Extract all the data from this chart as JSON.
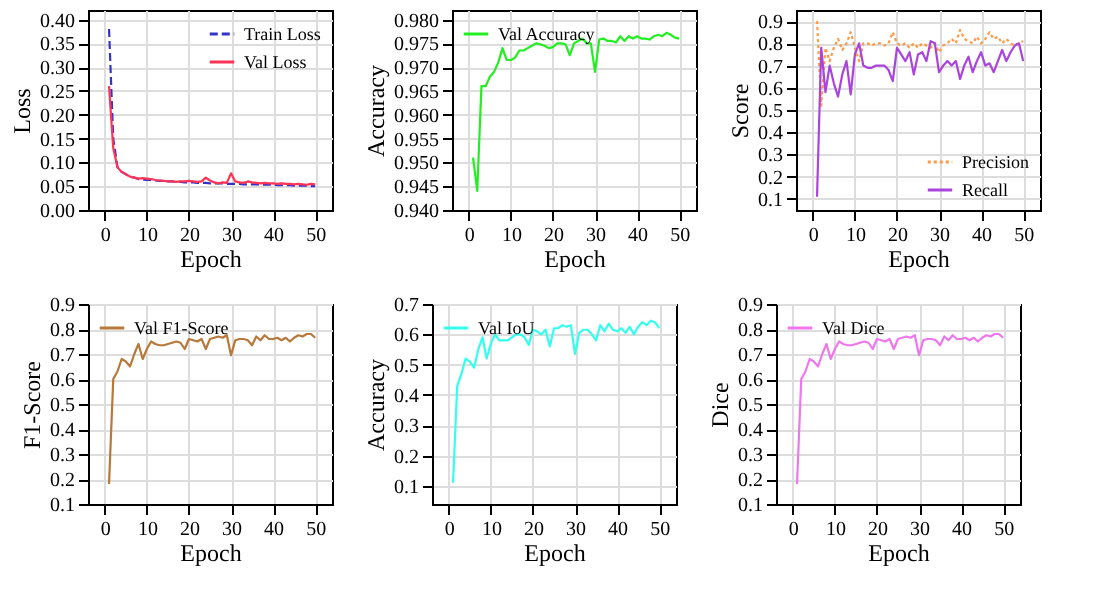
{
  "chart_data": [
    {
      "type": "line",
      "xlabel": "Epoch",
      "ylabel": "Loss",
      "xlim": [
        -4,
        54
      ],
      "xticks": [
        0,
        10,
        20,
        30,
        40,
        50
      ],
      "ylim": [
        0,
        0.42
      ],
      "yticks": [
        {
          "value": 0,
          "label": "0.00"
        },
        {
          "value": 0.05,
          "label": "0.05"
        },
        {
          "value": 0.1,
          "label": "0.10"
        },
        {
          "value": 0.15,
          "label": "0.15"
        },
        {
          "value": 0.2,
          "label": "0.20"
        },
        {
          "value": 0.25,
          "label": "0.25"
        },
        {
          "value": 0.3,
          "label": "0.30"
        },
        {
          "value": 0.35,
          "label": "0.35"
        },
        {
          "value": 0.4,
          "label": "0.40"
        }
      ],
      "grid": true,
      "legend": "top right",
      "x": [
        1,
        2,
        3,
        4,
        5,
        6,
        7,
        8,
        9,
        10,
        11,
        12,
        13,
        14,
        15,
        16,
        17,
        18,
        19,
        20,
        21,
        22,
        23,
        24,
        25,
        26,
        27,
        28,
        29,
        30,
        31,
        32,
        33,
        34,
        35,
        36,
        37,
        38,
        39,
        40,
        41,
        42,
        43,
        44,
        45,
        46,
        47,
        48,
        49,
        50
      ],
      "series": [
        {
          "name": "Train Loss",
          "color": "#3333cc",
          "line_style": "dashed",
          "values": [
            0.38,
            0.15,
            0.09,
            0.08,
            0.075,
            0.07,
            0.068,
            0.065,
            0.064,
            0.063,
            0.063,
            0.062,
            0.061,
            0.061,
            0.06,
            0.06,
            0.059,
            0.059,
            0.058,
            0.058,
            0.058,
            0.057,
            0.057,
            0.057,
            0.056,
            0.056,
            0.056,
            0.056,
            0.055,
            0.055,
            0.055,
            0.055,
            0.054,
            0.054,
            0.054,
            0.054,
            0.053,
            0.053,
            0.053,
            0.053,
            0.052,
            0.052,
            0.052,
            0.052,
            0.051,
            0.051,
            0.051,
            0.051,
            0.05,
            0.05
          ]
        },
        {
          "name": "Val Loss",
          "color": "#ff3355",
          "line_style": "solid",
          "values": [
            0.26,
            0.13,
            0.09,
            0.08,
            0.075,
            0.07,
            0.068,
            0.066,
            0.067,
            0.066,
            0.065,
            0.063,
            0.062,
            0.061,
            0.06,
            0.06,
            0.059,
            0.06,
            0.06,
            0.061,
            0.06,
            0.059,
            0.06,
            0.068,
            0.062,
            0.058,
            0.056,
            0.058,
            0.057,
            0.077,
            0.06,
            0.058,
            0.057,
            0.06,
            0.058,
            0.057,
            0.056,
            0.057,
            0.056,
            0.056,
            0.055,
            0.056,
            0.055,
            0.055,
            0.054,
            0.055,
            0.054,
            0.053,
            0.055,
            0.054
          ]
        }
      ]
    },
    {
      "type": "line",
      "xlabel": "Epoch",
      "ylabel": "Accuracy",
      "xlim": [
        -4,
        54
      ],
      "xticks": [
        0,
        10,
        20,
        30,
        40,
        50
      ],
      "ylim": [
        0.94,
        0.982
      ],
      "yticks": [
        {
          "value": 0.94,
          "label": "0.940"
        },
        {
          "value": 0.945,
          "label": "0.945"
        },
        {
          "value": 0.95,
          "label": "0.950"
        },
        {
          "value": 0.955,
          "label": "0.955"
        },
        {
          "value": 0.96,
          "label": "0.960"
        },
        {
          "value": 0.965,
          "label": "0.965"
        },
        {
          "value": 0.97,
          "label": "0.970"
        },
        {
          "value": 0.975,
          "label": "0.975"
        },
        {
          "value": 0.98,
          "label": "0.980"
        }
      ],
      "grid": true,
      "legend": "top left",
      "x": [
        1,
        2,
        3,
        4,
        5,
        6,
        7,
        8,
        9,
        10,
        11,
        12,
        13,
        14,
        15,
        16,
        17,
        18,
        19,
        20,
        21,
        22,
        23,
        24,
        25,
        26,
        27,
        28,
        29,
        30,
        31,
        32,
        33,
        34,
        35,
        36,
        37,
        38,
        39,
        40,
        41,
        42,
        43,
        44,
        45,
        46,
        47,
        48,
        49,
        50
      ],
      "series": [
        {
          "name": "Val Accuracy",
          "color": "#22ee22",
          "line_style": "solid",
          "values": [
            0.951,
            0.944,
            0.966,
            0.966,
            0.968,
            0.969,
            0.971,
            0.974,
            0.9715,
            0.9715,
            0.972,
            0.9735,
            0.9735,
            0.974,
            0.9745,
            0.975,
            0.9748,
            0.9745,
            0.974,
            0.9742,
            0.975,
            0.975,
            0.9748,
            0.9725,
            0.975,
            0.9755,
            0.976,
            0.975,
            0.975,
            0.969,
            0.9758,
            0.976,
            0.9755,
            0.9755,
            0.9752,
            0.9765,
            0.9755,
            0.9765,
            0.976,
            0.9765,
            0.976,
            0.976,
            0.9758,
            0.9765,
            0.9768,
            0.9765,
            0.9772,
            0.9768,
            0.9762,
            0.976
          ]
        }
      ]
    },
    {
      "type": "line",
      "xlabel": "Epoch",
      "ylabel": "Score",
      "xlim": [
        -4,
        54
      ],
      "xticks": [
        0,
        10,
        20,
        30,
        40,
        50
      ],
      "ylim": [
        0.05,
        0.95
      ],
      "yticks": [
        0.1,
        0.2,
        0.3,
        0.4,
        0.5,
        0.6,
        0.7,
        0.8,
        0.9
      ],
      "grid": true,
      "legend": "bottom right",
      "x": [
        1,
        2,
        3,
        4,
        5,
        6,
        7,
        8,
        9,
        10,
        11,
        12,
        13,
        14,
        15,
        16,
        17,
        18,
        19,
        20,
        21,
        22,
        23,
        24,
        25,
        26,
        27,
        28,
        29,
        30,
        31,
        32,
        33,
        34,
        35,
        36,
        37,
        38,
        39,
        40,
        41,
        42,
        43,
        44,
        45,
        46,
        47,
        48,
        49,
        50
      ],
      "series": [
        {
          "name": "Precision",
          "color": "#ff9944",
          "line_style": "dotted",
          "values": [
            0.9,
            0.52,
            0.78,
            0.72,
            0.78,
            0.82,
            0.77,
            0.8,
            0.85,
            0.78,
            0.72,
            0.8,
            0.8,
            0.79,
            0.8,
            0.8,
            0.79,
            0.8,
            0.85,
            0.8,
            0.79,
            0.8,
            0.78,
            0.8,
            0.78,
            0.8,
            0.79,
            0.78,
            0.8,
            0.76,
            0.79,
            0.8,
            0.82,
            0.8,
            0.86,
            0.82,
            0.81,
            0.8,
            0.83,
            0.8,
            0.82,
            0.85,
            0.82,
            0.83,
            0.8,
            0.82,
            0.8,
            0.79,
            0.8,
            0.81
          ]
        },
        {
          "name": "Recall",
          "color": "#aa44dd",
          "line_style": "solid",
          "values": [
            0.11,
            0.78,
            0.58,
            0.7,
            0.62,
            0.56,
            0.66,
            0.72,
            0.57,
            0.75,
            0.8,
            0.7,
            0.69,
            0.69,
            0.7,
            0.7,
            0.7,
            0.68,
            0.63,
            0.78,
            0.75,
            0.72,
            0.76,
            0.66,
            0.75,
            0.76,
            0.72,
            0.81,
            0.8,
            0.67,
            0.7,
            0.72,
            0.7,
            0.72,
            0.64,
            0.7,
            0.74,
            0.67,
            0.72,
            0.76,
            0.7,
            0.71,
            0.67,
            0.72,
            0.77,
            0.72,
            0.76,
            0.79,
            0.8,
            0.72
          ]
        }
      ]
    },
    {
      "type": "line",
      "xlabel": "Epoch",
      "ylabel": "F1-Score",
      "xlim": [
        -4,
        54
      ],
      "xticks": [
        0,
        10,
        20,
        30,
        40,
        50
      ],
      "ylim": [
        0.1,
        0.9
      ],
      "yticks": [
        0.1,
        0.2,
        0.3,
        0.4,
        0.5,
        0.6,
        0.7,
        0.8,
        0.9
      ],
      "grid": true,
      "legend": "top left",
      "x": [
        1,
        2,
        3,
        4,
        5,
        6,
        7,
        8,
        9,
        10,
        11,
        12,
        13,
        14,
        15,
        16,
        17,
        18,
        19,
        20,
        21,
        22,
        23,
        24,
        25,
        26,
        27,
        28,
        29,
        30,
        31,
        32,
        33,
        34,
        35,
        36,
        37,
        38,
        39,
        40,
        41,
        42,
        43,
        44,
        45,
        46,
        47,
        48,
        49,
        50
      ],
      "series": [
        {
          "name": "Val F1-Score",
          "color": "#b8783a",
          "line_style": "solid",
          "values": [
            0.18,
            0.6,
            0.63,
            0.68,
            0.67,
            0.65,
            0.7,
            0.74,
            0.68,
            0.72,
            0.75,
            0.74,
            0.735,
            0.735,
            0.74,
            0.745,
            0.75,
            0.745,
            0.72,
            0.76,
            0.755,
            0.75,
            0.76,
            0.72,
            0.76,
            0.765,
            0.77,
            0.765,
            0.775,
            0.695,
            0.755,
            0.76,
            0.76,
            0.755,
            0.735,
            0.77,
            0.755,
            0.775,
            0.76,
            0.76,
            0.765,
            0.755,
            0.765,
            0.75,
            0.765,
            0.775,
            0.77,
            0.78,
            0.78,
            0.765
          ]
        }
      ]
    },
    {
      "type": "line",
      "xlabel": "Epoch",
      "ylabel": "Accuracy",
      "xlim": [
        -4,
        54
      ],
      "xticks": [
        0,
        10,
        20,
        30,
        40,
        50
      ],
      "ylim": [
        0.04,
        0.7
      ],
      "yticks": [
        0.1,
        0.2,
        0.3,
        0.4,
        0.5,
        0.6,
        0.7
      ],
      "grid": true,
      "legend": "top left",
      "x": [
        1,
        2,
        3,
        4,
        5,
        6,
        7,
        8,
        9,
        10,
        11,
        12,
        13,
        14,
        15,
        16,
        17,
        18,
        19,
        20,
        21,
        22,
        23,
        24,
        25,
        26,
        27,
        28,
        29,
        30,
        31,
        32,
        33,
        34,
        35,
        36,
        37,
        38,
        39,
        40,
        41,
        42,
        43,
        44,
        45,
        46,
        47,
        48,
        49,
        50
      ],
      "series": [
        {
          "name": "Val IoU",
          "color": "#33ffee",
          "line_style": "solid",
          "values": [
            0.11,
            0.43,
            0.47,
            0.52,
            0.51,
            0.49,
            0.55,
            0.59,
            0.52,
            0.57,
            0.6,
            0.58,
            0.58,
            0.58,
            0.59,
            0.6,
            0.6,
            0.59,
            0.565,
            0.615,
            0.61,
            0.6,
            0.615,
            0.56,
            0.62,
            0.62,
            0.63,
            0.625,
            0.63,
            0.535,
            0.605,
            0.615,
            0.615,
            0.6,
            0.58,
            0.63,
            0.61,
            0.635,
            0.615,
            0.61,
            0.62,
            0.605,
            0.625,
            0.6,
            0.625,
            0.64,
            0.63,
            0.645,
            0.64,
            0.62
          ]
        }
      ]
    },
    {
      "type": "line",
      "xlabel": "Epoch",
      "ylabel": "Dice",
      "xlim": [
        -4,
        54
      ],
      "xticks": [
        0,
        10,
        20,
        30,
        40,
        50
      ],
      "ylim": [
        0.1,
        0.9
      ],
      "yticks": [
        0.1,
        0.2,
        0.3,
        0.4,
        0.5,
        0.6,
        0.7,
        0.8,
        0.9
      ],
      "grid": true,
      "legend": "top left",
      "x": [
        1,
        2,
        3,
        4,
        5,
        6,
        7,
        8,
        9,
        10,
        11,
        12,
        13,
        14,
        15,
        16,
        17,
        18,
        19,
        20,
        21,
        22,
        23,
        24,
        25,
        26,
        27,
        28,
        29,
        30,
        31,
        32,
        33,
        34,
        35,
        36,
        37,
        38,
        39,
        40,
        41,
        42,
        43,
        44,
        45,
        46,
        47,
        48,
        49,
        50
      ],
      "series": [
        {
          "name": "Val Dice",
          "color": "#ee77ee",
          "line_style": "solid",
          "values": [
            0.18,
            0.6,
            0.63,
            0.68,
            0.67,
            0.65,
            0.7,
            0.74,
            0.68,
            0.72,
            0.75,
            0.74,
            0.735,
            0.735,
            0.74,
            0.745,
            0.75,
            0.745,
            0.72,
            0.76,
            0.755,
            0.75,
            0.76,
            0.72,
            0.76,
            0.765,
            0.77,
            0.765,
            0.775,
            0.695,
            0.755,
            0.76,
            0.76,
            0.755,
            0.735,
            0.77,
            0.755,
            0.775,
            0.76,
            0.76,
            0.765,
            0.755,
            0.765,
            0.75,
            0.765,
            0.775,
            0.77,
            0.78,
            0.78,
            0.765
          ]
        }
      ]
    }
  ]
}
